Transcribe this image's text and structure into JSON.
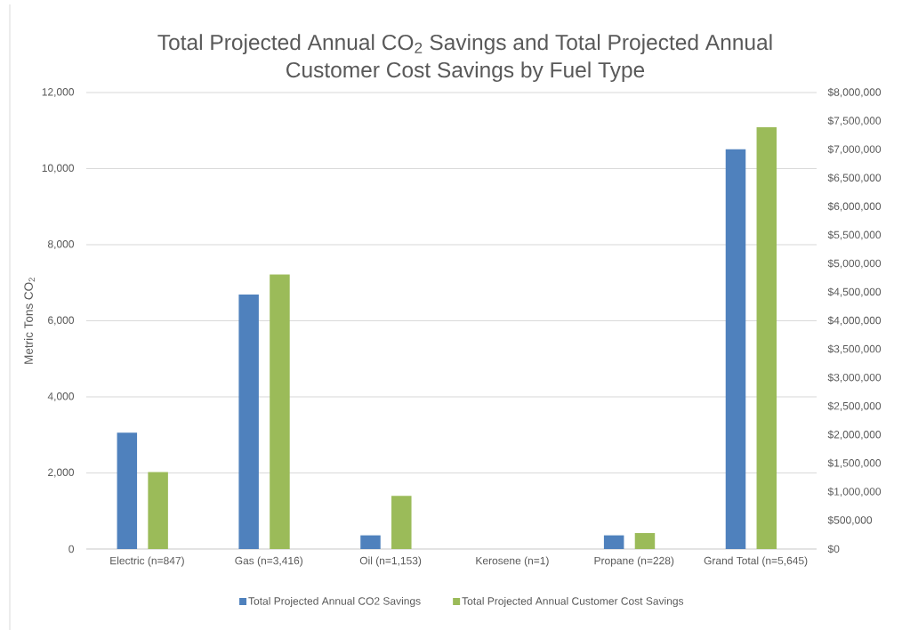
{
  "chart_data": {
    "type": "bar",
    "title": "Total Projected Annual CO$_{2}$ Savings and Total Projected Annual Customer Cost Savings by Fuel Type",
    "ylabel": "Metric Tons CO$_{2}$",
    "categories": [
      "Electric (n=847)",
      "Gas (n=3,416)",
      "Oil (n=1,153)",
      "Kerosene (n=1)",
      "Propane (n=228)",
      "Grand Total (n=5,645)"
    ],
    "series": [
      {
        "name": "Total Projected Annual CO2 Savings",
        "color": "#4f81bd",
        "values": [
          3060,
          6690,
          360,
          0,
          360,
          10510
        ]
      },
      {
        "name": "Total Projected Annual Customer Cost Savings",
        "color": "#9bbb59",
        "values": [
          1350000,
          4810000,
          930000,
          0,
          280000,
          7390000
        ],
        "axis": "y2"
      }
    ],
    "ylim": [
      0,
      12000
    ],
    "yticks": [
      0,
      {
        "value": 2000,
        "label": "2,000"
      },
      {
        "value": 4000,
        "label": "4,000"
      },
      {
        "value": 6000,
        "label": "6,000"
      },
      {
        "value": 8000,
        "label": "8,000"
      },
      {
        "value": 10000,
        "label": "10,000"
      },
      {
        "value": 12000,
        "label": "12,000"
      }
    ],
    "y2lim": [
      0,
      8000000
    ],
    "y2ticks": [
      {
        "value": 0,
        "label": "$0"
      },
      {
        "value": 500000,
        "label": "$500,000"
      },
      {
        "value": 1000000,
        "label": "$1,000,000"
      },
      {
        "value": 1500000,
        "label": "$1,500,000"
      },
      {
        "value": 2000000,
        "label": "$2,000,000"
      },
      {
        "value": 2500000,
        "label": "$2,500,000"
      },
      {
        "value": 3000000,
        "label": "$3,000,000"
      },
      {
        "value": 3500000,
        "label": "$3,500,000"
      },
      {
        "value": 4000000,
        "label": "$4,000,000"
      },
      {
        "value": 4500000,
        "label": "$4,500,000"
      },
      {
        "value": 5000000,
        "label": "$5,000,000"
      },
      {
        "value": 5500000,
        "label": "$5,500,000"
      },
      {
        "value": 6000000,
        "label": "$6,000,000"
      },
      {
        "value": 6500000,
        "label": "$6,500,000"
      },
      {
        "value": 7000000,
        "label": "$7,000,000"
      },
      {
        "value": 7500000,
        "label": "$7,500,000"
      },
      {
        "value": 8000000,
        "label": "$8,000,000"
      }
    ],
    "grid": "y",
    "legend": "bottom"
  }
}
